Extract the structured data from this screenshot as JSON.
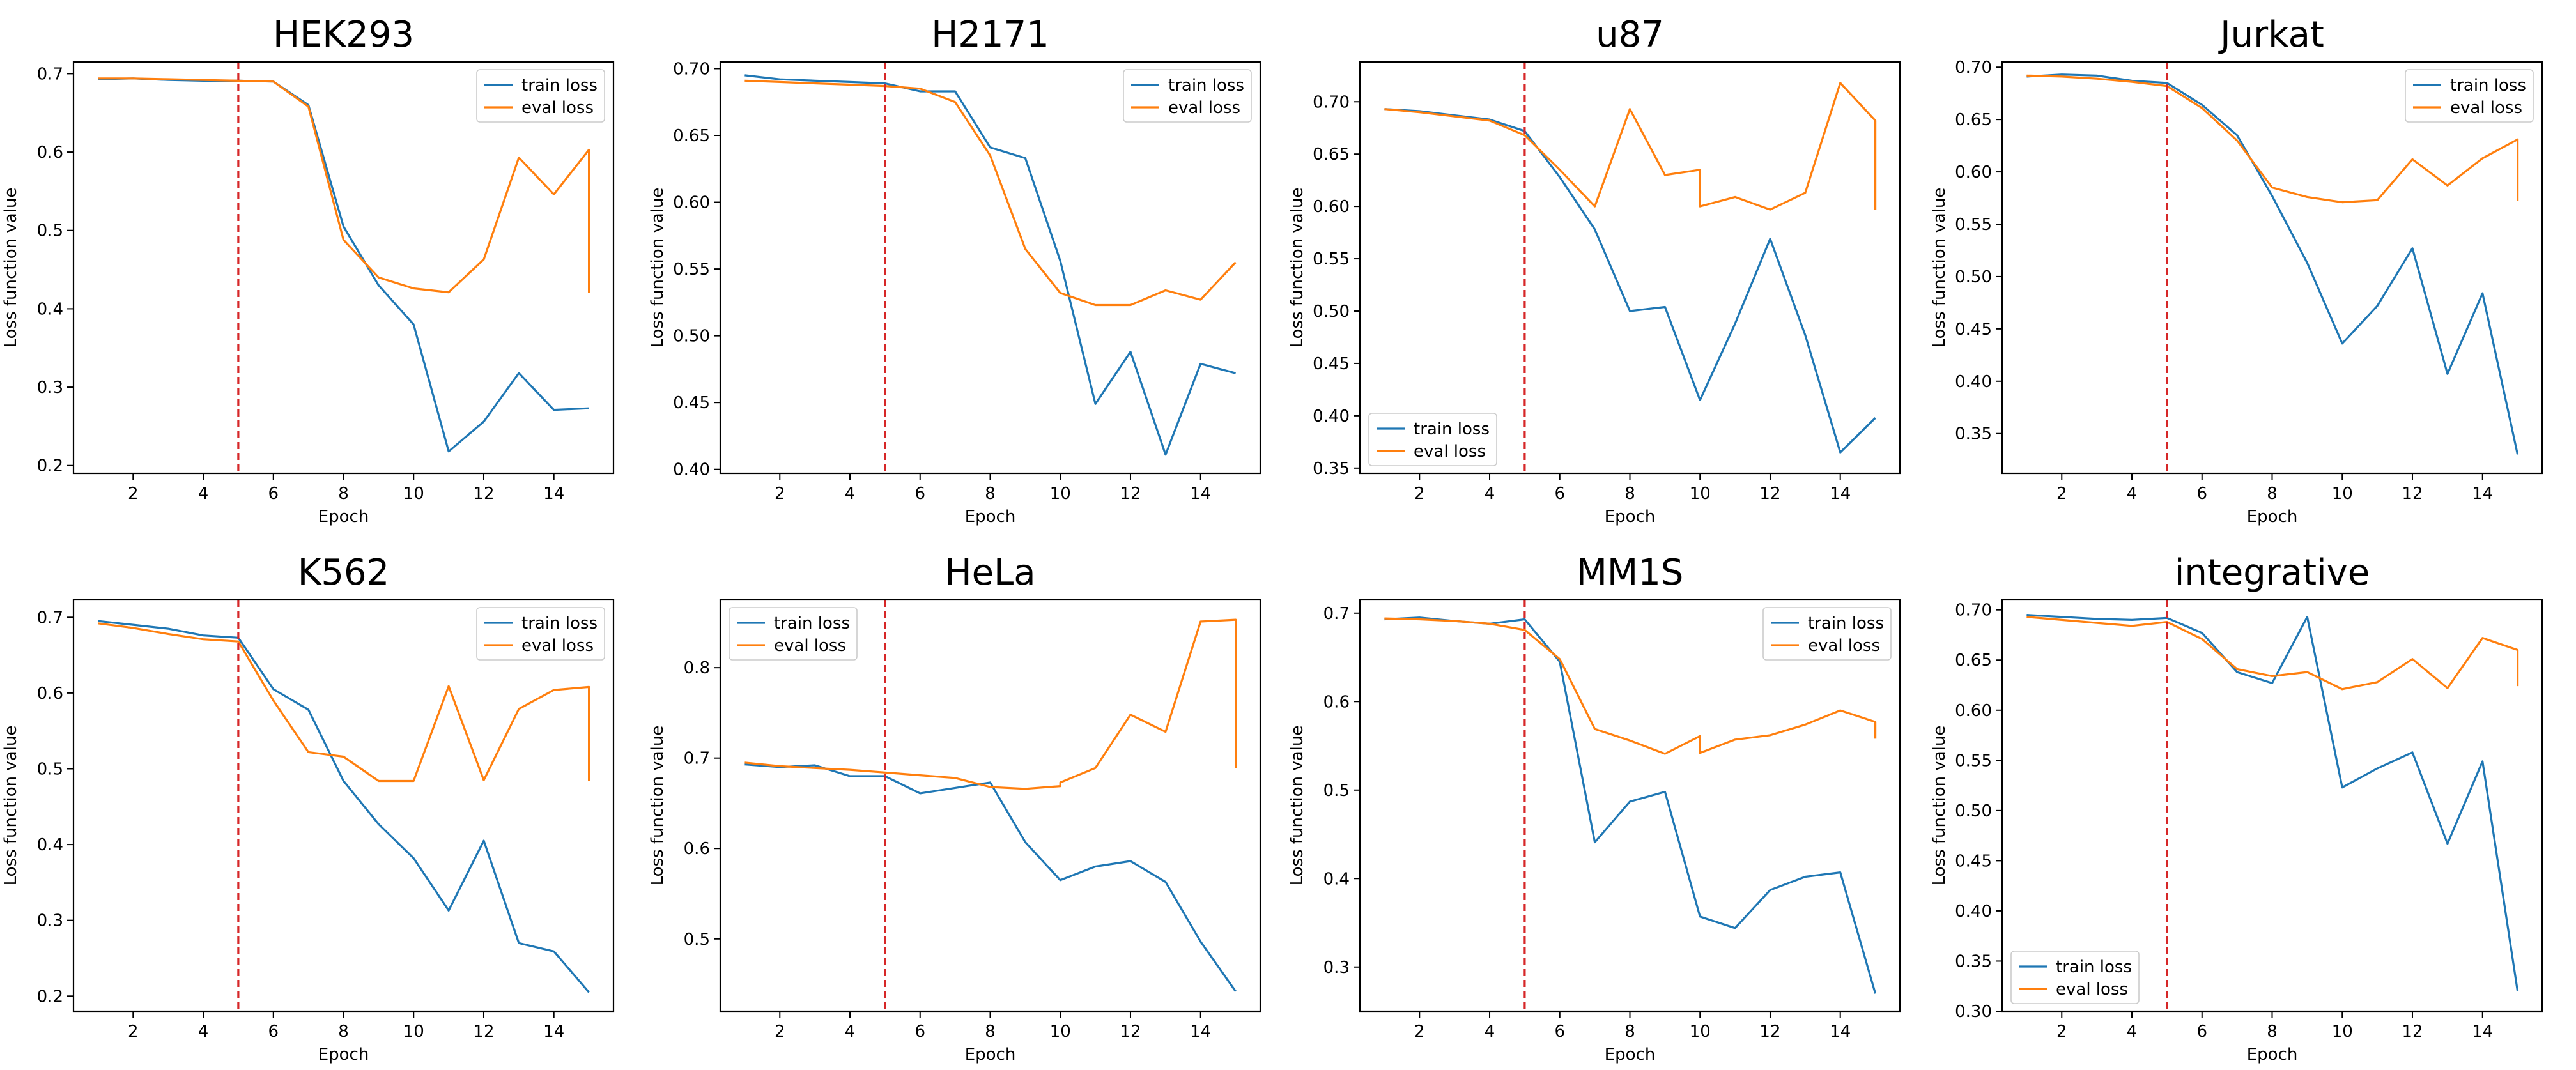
{
  "figure": {
    "colors": {
      "train": "#1f77b4",
      "eval": "#ff7f0e",
      "vline": "#d62728",
      "axis": "#000000"
    },
    "common": {
      "xlabel": "Epoch",
      "ylabel": "Loss function value",
      "train_label": "train loss",
      "eval_label": "eval loss",
      "vline_x": 5
    }
  },
  "chart_data": [
    {
      "type": "line",
      "title": "HEK293",
      "xlabel": "Epoch",
      "ylabel": "Loss function value",
      "xlim": [
        0.3,
        15.7
      ],
      "ylim": [
        0.19,
        0.715
      ],
      "xticks": [
        2,
        4,
        6,
        8,
        10,
        12,
        14
      ],
      "yticks": [
        0.2,
        0.3,
        0.4,
        0.5,
        0.6,
        0.7
      ],
      "ytick_labels": [
        "0.2",
        "0.3",
        "0.4",
        "0.5",
        "0.6",
        "0.7"
      ],
      "legend": "top-right",
      "vline_x": 5,
      "series": [
        {
          "name": "train loss",
          "color": "#1f77b4",
          "x": [
            1,
            2,
            3,
            4,
            5,
            6,
            7,
            8,
            9,
            10,
            11,
            12,
            13,
            14,
            15
          ],
          "y": [
            0.693,
            0.694,
            0.692,
            0.691,
            0.691,
            0.69,
            0.66,
            0.505,
            0.43,
            0.38,
            0.218,
            0.256,
            0.318,
            0.271,
            0.273
          ]
        },
        {
          "name": "eval loss",
          "color": "#ff7f0e",
          "x": [
            1,
            2,
            3,
            4,
            5,
            6,
            7,
            8,
            9,
            10,
            11,
            12,
            13,
            14,
            15,
            15
          ],
          "y": [
            0.694,
            0.694,
            0.693,
            0.692,
            0.691,
            0.69,
            0.658,
            0.488,
            0.44,
            0.426,
            0.421,
            0.463,
            0.593,
            0.546,
            0.603,
            0.42
          ]
        }
      ]
    },
    {
      "type": "line",
      "title": "H2171",
      "xlabel": "Epoch",
      "ylabel": "Loss function value",
      "xlim": [
        0.3,
        15.7
      ],
      "ylim": [
        0.397,
        0.705
      ],
      "xticks": [
        2,
        4,
        6,
        8,
        10,
        12,
        14
      ],
      "yticks": [
        0.4,
        0.45,
        0.5,
        0.55,
        0.6,
        0.65,
        0.7
      ],
      "ytick_labels": [
        "0.40",
        "0.45",
        "0.50",
        "0.55",
        "0.60",
        "0.65",
        "0.70"
      ],
      "legend": "top-right",
      "vline_x": 5,
      "series": [
        {
          "name": "train loss",
          "color": "#1f77b4",
          "x": [
            1,
            2,
            3,
            4,
            5,
            6,
            7,
            8,
            9,
            10,
            11,
            12,
            13,
            14,
            15
          ],
          "y": [
            0.695,
            0.692,
            0.691,
            0.69,
            0.689,
            0.683,
            0.683,
            0.641,
            0.633,
            0.556,
            0.449,
            0.488,
            0.411,
            0.479,
            0.472
          ]
        },
        {
          "name": "eval loss",
          "color": "#ff7f0e",
          "x": [
            1,
            2,
            3,
            4,
            5,
            6,
            7,
            8,
            9,
            10,
            11,
            12,
            13,
            14,
            15
          ],
          "y": [
            0.691,
            0.69,
            0.689,
            0.688,
            0.687,
            0.685,
            0.675,
            0.635,
            0.565,
            0.532,
            0.523,
            0.523,
            0.534,
            0.527,
            0.555
          ]
        }
      ]
    },
    {
      "type": "line",
      "title": "u87",
      "xlabel": "Epoch",
      "ylabel": "Loss function value",
      "xlim": [
        0.3,
        15.7
      ],
      "ylim": [
        0.345,
        0.738
      ],
      "xticks": [
        2,
        4,
        6,
        8,
        10,
        12,
        14
      ],
      "yticks": [
        0.35,
        0.4,
        0.45,
        0.5,
        0.55,
        0.6,
        0.65,
        0.7
      ],
      "ytick_labels": [
        "0.35",
        "0.40",
        "0.45",
        "0.50",
        "0.55",
        "0.60",
        "0.65",
        "0.70"
      ],
      "legend": "bottom-left",
      "vline_x": 5,
      "series": [
        {
          "name": "train loss",
          "color": "#1f77b4",
          "x": [
            1,
            2,
            3,
            4,
            5,
            6,
            7,
            8,
            9,
            10,
            11,
            12,
            13,
            14,
            15
          ],
          "y": [
            0.693,
            0.691,
            0.687,
            0.683,
            0.672,
            0.628,
            0.578,
            0.5,
            0.504,
            0.415,
            0.488,
            0.569,
            0.477,
            0.365,
            0.398
          ]
        },
        {
          "name": "eval loss",
          "color": "#ff7f0e",
          "x": [
            1,
            2,
            3,
            4,
            5,
            6,
            7,
            8,
            9,
            10,
            10,
            11,
            12,
            13,
            14,
            15,
            15
          ],
          "y": [
            0.693,
            0.69,
            0.686,
            0.682,
            0.668,
            0.635,
            0.6,
            0.693,
            0.63,
            0.635,
            0.6,
            0.609,
            0.597,
            0.613,
            0.718,
            0.682,
            0.597
          ]
        }
      ]
    },
    {
      "type": "line",
      "title": "Jurkat",
      "xlabel": "Epoch",
      "ylabel": "Loss function value",
      "xlim": [
        0.3,
        15.7
      ],
      "ylim": [
        0.312,
        0.705
      ],
      "xticks": [
        2,
        4,
        6,
        8,
        10,
        12,
        14
      ],
      "yticks": [
        0.35,
        0.4,
        0.45,
        0.5,
        0.55,
        0.6,
        0.65,
        0.7
      ],
      "ytick_labels": [
        "0.35",
        "0.40",
        "0.45",
        "0.50",
        "0.55",
        "0.60",
        "0.65",
        "0.70"
      ],
      "legend": "top-right",
      "vline_x": 5,
      "series": [
        {
          "name": "train loss",
          "color": "#1f77b4",
          "x": [
            1,
            2,
            3,
            4,
            5,
            6,
            7,
            8,
            9,
            10,
            11,
            12,
            13,
            14,
            15
          ],
          "y": [
            0.691,
            0.693,
            0.692,
            0.687,
            0.685,
            0.664,
            0.635,
            0.577,
            0.513,
            0.436,
            0.472,
            0.527,
            0.407,
            0.484,
            0.33
          ]
        },
        {
          "name": "eval loss",
          "color": "#ff7f0e",
          "x": [
            1,
            2,
            3,
            4,
            5,
            6,
            7,
            8,
            9,
            10,
            11,
            12,
            13,
            14,
            15,
            15
          ],
          "y": [
            0.692,
            0.691,
            0.689,
            0.686,
            0.682,
            0.661,
            0.63,
            0.585,
            0.576,
            0.571,
            0.573,
            0.612,
            0.587,
            0.613,
            0.631,
            0.572
          ]
        }
      ]
    },
    {
      "type": "line",
      "title": "K562",
      "xlabel": "Epoch",
      "ylabel": "Loss function value",
      "xlim": [
        0.3,
        15.7
      ],
      "ylim": [
        0.18,
        0.723
      ],
      "xticks": [
        2,
        4,
        6,
        8,
        10,
        12,
        14
      ],
      "yticks": [
        0.2,
        0.3,
        0.4,
        0.5,
        0.6,
        0.7
      ],
      "ytick_labels": [
        "0.2",
        "0.3",
        "0.4",
        "0.5",
        "0.6",
        "0.7"
      ],
      "legend": "top-right",
      "vline_x": 5,
      "series": [
        {
          "name": "train loss",
          "color": "#1f77b4",
          "x": [
            1,
            2,
            3,
            4,
            5,
            6,
            7,
            8,
            9,
            10,
            11,
            12,
            13,
            14,
            15
          ],
          "y": [
            0.695,
            0.69,
            0.685,
            0.676,
            0.673,
            0.605,
            0.578,
            0.484,
            0.427,
            0.382,
            0.313,
            0.405,
            0.27,
            0.259,
            0.205
          ]
        },
        {
          "name": "eval loss",
          "color": "#ff7f0e",
          "x": [
            1,
            2,
            3,
            4,
            5,
            6,
            7,
            8,
            9,
            10,
            11,
            12,
            13,
            14,
            15,
            15
          ],
          "y": [
            0.692,
            0.686,
            0.678,
            0.671,
            0.668,
            0.59,
            0.522,
            0.516,
            0.484,
            0.484,
            0.609,
            0.485,
            0.579,
            0.604,
            0.608,
            0.484
          ]
        }
      ]
    },
    {
      "type": "line",
      "title": "HeLa",
      "xlabel": "Epoch",
      "ylabel": "Loss function value",
      "xlim": [
        0.3,
        15.7
      ],
      "ylim": [
        0.42,
        0.875
      ],
      "xticks": [
        2,
        4,
        6,
        8,
        10,
        12,
        14
      ],
      "yticks": [
        0.5,
        0.6,
        0.7,
        0.8
      ],
      "ytick_labels": [
        "0.5",
        "0.6",
        "0.7",
        "0.8"
      ],
      "legend": "top-left",
      "vline_x": 5,
      "series": [
        {
          "name": "train loss",
          "color": "#1f77b4",
          "x": [
            1,
            2,
            3,
            4,
            5,
            6,
            7,
            8,
            9,
            10,
            11,
            12,
            13,
            14,
            15
          ],
          "y": [
            0.693,
            0.69,
            0.692,
            0.68,
            0.68,
            0.661,
            0.667,
            0.673,
            0.607,
            0.565,
            0.58,
            0.586,
            0.563,
            0.497,
            0.442
          ]
        },
        {
          "name": "eval loss",
          "color": "#ff7f0e",
          "x": [
            1,
            2,
            3,
            4,
            5,
            6,
            7,
            8,
            9,
            10,
            10,
            11,
            12,
            13,
            14,
            15,
            15
          ],
          "y": [
            0.695,
            0.691,
            0.689,
            0.687,
            0.684,
            0.681,
            0.678,
            0.668,
            0.666,
            0.669,
            0.673,
            0.689,
            0.748,
            0.729,
            0.851,
            0.853,
            0.689
          ]
        }
      ]
    },
    {
      "type": "line",
      "title": "MM1S",
      "xlabel": "Epoch",
      "ylabel": "Loss function value",
      "xlim": [
        0.3,
        15.7
      ],
      "ylim": [
        0.25,
        0.715
      ],
      "xticks": [
        2,
        4,
        6,
        8,
        10,
        12,
        14
      ],
      "yticks": [
        0.3,
        0.4,
        0.5,
        0.6,
        0.7
      ],
      "ytick_labels": [
        "0.3",
        "0.4",
        "0.5",
        "0.6",
        "0.7"
      ],
      "legend": "top-right",
      "vline_x": 5,
      "series": [
        {
          "name": "train loss",
          "color": "#1f77b4",
          "x": [
            1,
            2,
            3,
            4,
            5,
            6,
            7,
            8,
            9,
            10,
            11,
            12,
            13,
            14,
            15
          ],
          "y": [
            0.693,
            0.695,
            0.691,
            0.688,
            0.693,
            0.645,
            0.441,
            0.487,
            0.498,
            0.357,
            0.344,
            0.387,
            0.402,
            0.407,
            0.27
          ]
        },
        {
          "name": "eval loss",
          "color": "#ff7f0e",
          "x": [
            1,
            2,
            3,
            4,
            5,
            6,
            7,
            8,
            9,
            10,
            10,
            11,
            12,
            13,
            14,
            15,
            15
          ],
          "y": [
            0.694,
            0.693,
            0.691,
            0.688,
            0.681,
            0.648,
            0.569,
            0.556,
            0.541,
            0.561,
            0.542,
            0.557,
            0.562,
            0.574,
            0.59,
            0.577,
            0.558
          ]
        }
      ]
    },
    {
      "type": "line",
      "title": "integrative",
      "xlabel": "Epoch",
      "ylabel": "Loss function value",
      "xlim": [
        0.3,
        15.7
      ],
      "ylim": [
        0.3,
        0.71
      ],
      "xticks": [
        2,
        4,
        6,
        8,
        10,
        12,
        14
      ],
      "yticks": [
        0.3,
        0.35,
        0.4,
        0.45,
        0.5,
        0.55,
        0.6,
        0.65,
        0.7
      ],
      "ytick_labels": [
        "0.30",
        "0.35",
        "0.40",
        "0.45",
        "0.50",
        "0.55",
        "0.60",
        "0.65",
        "0.70"
      ],
      "legend": "bottom-left",
      "vline_x": 5,
      "series": [
        {
          "name": "train loss",
          "color": "#1f77b4",
          "x": [
            1,
            2,
            3,
            4,
            5,
            6,
            7,
            8,
            9,
            10,
            11,
            12,
            13,
            14,
            15
          ],
          "y": [
            0.695,
            0.693,
            0.691,
            0.69,
            0.692,
            0.677,
            0.638,
            0.627,
            0.693,
            0.523,
            0.542,
            0.558,
            0.467,
            0.549,
            0.32
          ]
        },
        {
          "name": "eval loss",
          "color": "#ff7f0e",
          "x": [
            1,
            2,
            3,
            4,
            5,
            6,
            7,
            8,
            9,
            10,
            11,
            12,
            13,
            14,
            15,
            15
          ],
          "y": [
            0.693,
            0.69,
            0.687,
            0.684,
            0.688,
            0.671,
            0.641,
            0.634,
            0.638,
            0.621,
            0.628,
            0.651,
            0.622,
            0.672,
            0.66,
            0.624
          ]
        }
      ]
    }
  ]
}
